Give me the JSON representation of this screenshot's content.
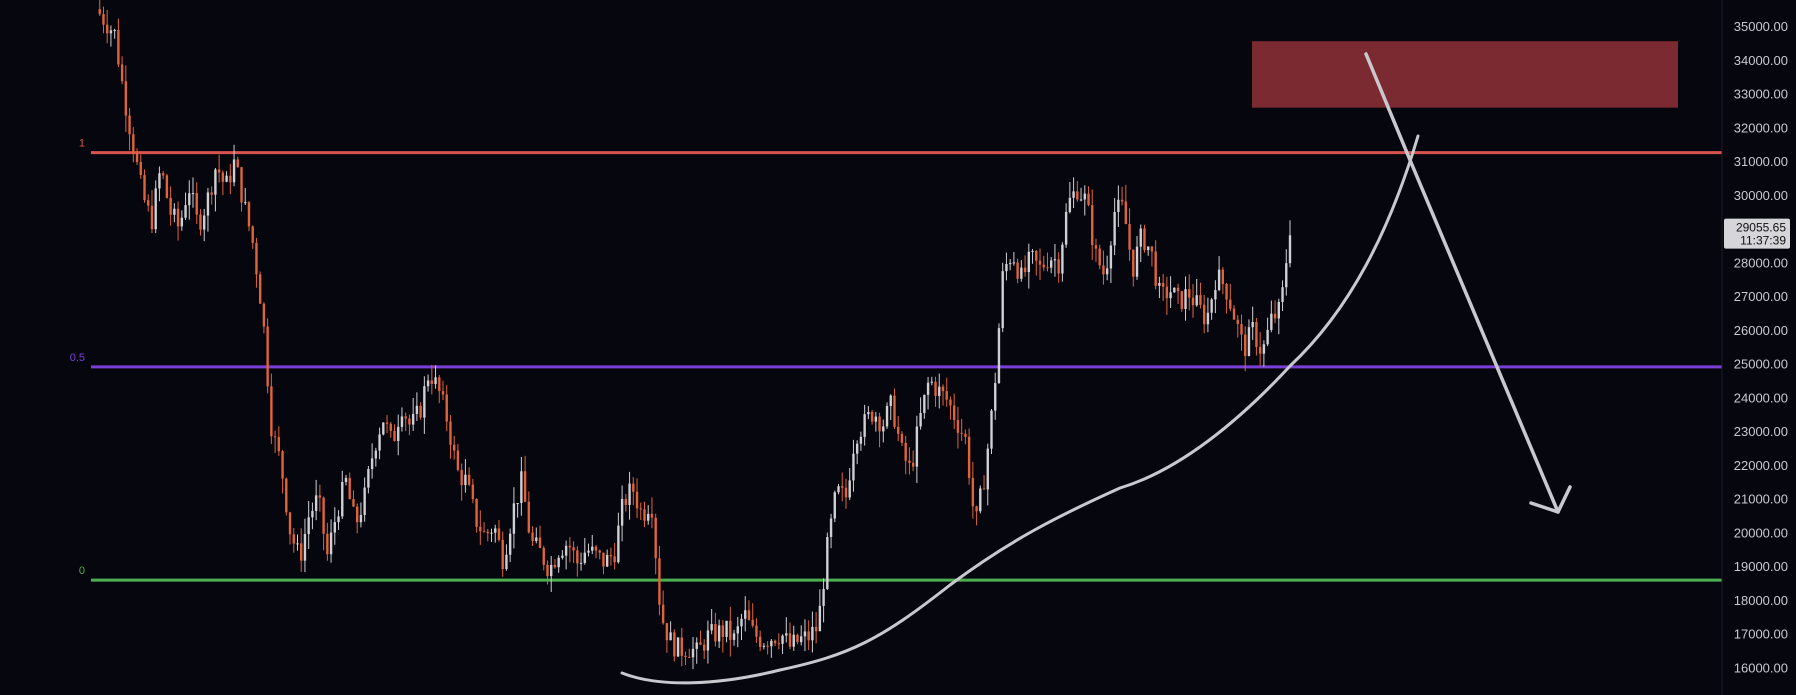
{
  "colors": {
    "background": "#06060f",
    "up": "#cfcfd4",
    "down": "#e0643a",
    "fib_1": "#d9534f",
    "fib_05": "#7a3fd6",
    "fib_0": "#4caf50",
    "zone": "#7a2a30",
    "drawing": "#c8c8ce"
  },
  "chart_data": {
    "type": "candlestick",
    "price_axis": {
      "ylim": [
        15600,
        35500
      ],
      "ticks": [
        "35000.00",
        "34000.00",
        "33000.00",
        "32000.00",
        "31000.00",
        "30000.00",
        "29000.00",
        "28000.00",
        "27000.00",
        "26000.00",
        "25000.00",
        "24000.00",
        "23000.00",
        "22000.00",
        "21000.00",
        "20000.00",
        "19000.00",
        "18000.00",
        "17000.00",
        "16000.00"
      ],
      "tick_values": [
        35000,
        34000,
        33000,
        32000,
        31000,
        30000,
        29000,
        28000,
        27000,
        26000,
        25000,
        24000,
        23000,
        22000,
        21000,
        20000,
        19000,
        18000,
        17000,
        16000
      ]
    },
    "current": {
      "price": "29055.65",
      "countdown": "11:37:39",
      "value": 29055.65
    },
    "fib_levels": [
      {
        "label": "1",
        "price": 31250
      },
      {
        "label": "0.5",
        "price": 24900
      },
      {
        "label": "0",
        "price": 18580
      }
    ],
    "resistance_zone": {
      "top": 34550,
      "bottom": 32580
    },
    "price_path": [
      [
        0,
        35500
      ],
      [
        4,
        34800
      ],
      [
        6,
        33000
      ],
      [
        8,
        31500
      ],
      [
        10,
        30000
      ],
      [
        12,
        29200
      ],
      [
        14,
        30800
      ],
      [
        16,
        29500
      ],
      [
        18,
        29000
      ],
      [
        20,
        30300
      ],
      [
        22,
        29100
      ],
      [
        24,
        29800
      ],
      [
        26,
        30900
      ],
      [
        28,
        30200
      ],
      [
        30,
        31000
      ],
      [
        32,
        29700
      ],
      [
        34,
        28500
      ],
      [
        36,
        26500
      ],
      [
        38,
        23000
      ],
      [
        40,
        22000
      ],
      [
        42,
        20000
      ],
      [
        44,
        19200
      ],
      [
        46,
        20500
      ],
      [
        48,
        21000
      ],
      [
        50,
        19300
      ],
      [
        52,
        20600
      ],
      [
        54,
        21500
      ],
      [
        56,
        20200
      ],
      [
        58,
        21000
      ],
      [
        60,
        22500
      ],
      [
        62,
        23400
      ],
      [
        64,
        22600
      ],
      [
        66,
        23800
      ],
      [
        68,
        23100
      ],
      [
        70,
        23600
      ],
      [
        72,
        24800
      ],
      [
        74,
        24200
      ],
      [
        76,
        23300
      ],
      [
        78,
        21800
      ],
      [
        80,
        21500
      ],
      [
        82,
        20400
      ],
      [
        84,
        19900
      ],
      [
        86,
        20200
      ],
      [
        88,
        19200
      ],
      [
        90,
        20600
      ],
      [
        92,
        21500
      ],
      [
        94,
        19700
      ],
      [
        96,
        19400
      ],
      [
        98,
        18900
      ],
      [
        100,
        19500
      ],
      [
        102,
        19700
      ],
      [
        104,
        19100
      ],
      [
        106,
        19500
      ],
      [
        108,
        19300
      ],
      [
        110,
        19100
      ],
      [
        112,
        19400
      ],
      [
        114,
        20900
      ],
      [
        116,
        21300
      ],
      [
        118,
        20500
      ],
      [
        120,
        21000
      ],
      [
        122,
        17600
      ],
      [
        124,
        16800
      ],
      [
        126,
        16500
      ],
      [
        128,
        16600
      ],
      [
        130,
        16400
      ],
      [
        132,
        16900
      ],
      [
        134,
        17000
      ],
      [
        136,
        17100
      ],
      [
        138,
        16800
      ],
      [
        140,
        17600
      ],
      [
        142,
        17000
      ],
      [
        144,
        16800
      ],
      [
        146,
        16900
      ],
      [
        148,
        17000
      ],
      [
        150,
        16600
      ],
      [
        152,
        16800
      ],
      [
        154,
        16900
      ],
      [
        156,
        17200
      ],
      [
        158,
        19500
      ],
      [
        160,
        21200
      ],
      [
        162,
        21000
      ],
      [
        164,
        22900
      ],
      [
        166,
        23200
      ],
      [
        168,
        23600
      ],
      [
        170,
        23200
      ],
      [
        172,
        23800
      ],
      [
        174,
        22400
      ],
      [
        176,
        21800
      ],
      [
        178,
        23300
      ],
      [
        180,
        24500
      ],
      [
        182,
        24200
      ],
      [
        184,
        23900
      ],
      [
        186,
        23300
      ],
      [
        188,
        22700
      ],
      [
        190,
        20100
      ],
      [
        192,
        21700
      ],
      [
        194,
        24000
      ],
      [
        196,
        27700
      ],
      [
        198,
        28300
      ],
      [
        200,
        27500
      ],
      [
        202,
        28100
      ],
      [
        204,
        27800
      ],
      [
        206,
        28200
      ],
      [
        208,
        28000
      ],
      [
        210,
        29700
      ],
      [
        212,
        30200
      ],
      [
        214,
        29800
      ],
      [
        216,
        28200
      ],
      [
        218,
        27600
      ],
      [
        220,
        29500
      ],
      [
        222,
        29600
      ],
      [
        224,
        27800
      ],
      [
        226,
        28800
      ],
      [
        228,
        28300
      ],
      [
        230,
        26900
      ],
      [
        232,
        27200
      ],
      [
        234,
        26800
      ],
      [
        236,
        27100
      ],
      [
        238,
        26700
      ],
      [
        240,
        26300
      ],
      [
        242,
        27600
      ],
      [
        244,
        27300
      ],
      [
        246,
        26400
      ],
      [
        248,
        25400
      ],
      [
        250,
        26000
      ],
      [
        252,
        25300
      ],
      [
        254,
        26300
      ],
      [
        256,
        26600
      ],
      [
        258,
        29055
      ]
    ],
    "annotations": [
      {
        "type": "curve",
        "name": "rounded bottom support curve"
      },
      {
        "type": "arrow",
        "name": "projected path"
      }
    ]
  }
}
